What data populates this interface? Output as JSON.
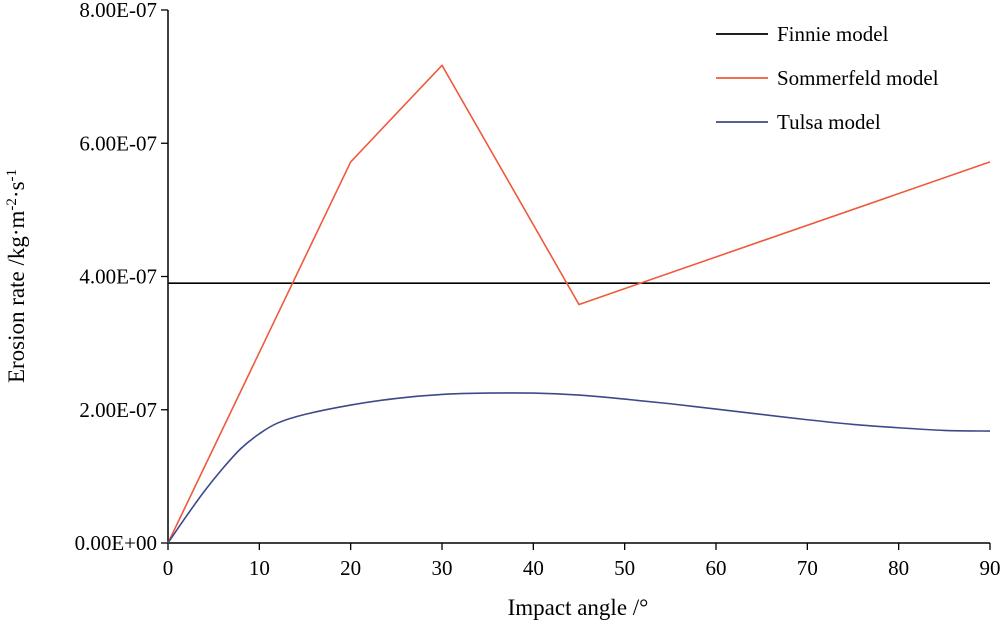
{
  "chart_data": {
    "type": "line",
    "xlabel": "Impact angle /°",
    "ylabel": "Erosion rate /kg·m",
    "ylabel_sup1": "-2",
    "ylabel_mid": "·s",
    "ylabel_sup2": "-1",
    "xlim": [
      0,
      90
    ],
    "ylim": [
      0,
      8e-07
    ],
    "xticks": [
      0,
      10,
      20,
      30,
      40,
      50,
      60,
      70,
      80,
      90
    ],
    "xtick_labels": [
      "0",
      "10",
      "20",
      "30",
      "40",
      "50",
      "60",
      "70",
      "80",
      "90"
    ],
    "yticks": [
      0,
      2e-07,
      4e-07,
      6e-07,
      8e-07
    ],
    "ytick_labels": [
      "0.00E+00",
      "2.00E-07",
      "4.00E-07",
      "6.00E-07",
      "8.00E-07"
    ],
    "grid": false,
    "legend_position": "top-right",
    "series": [
      {
        "name": "Finnie model",
        "color": "#000000",
        "x": [
          0,
          90
        ],
        "y": [
          3.9e-07,
          3.9e-07
        ]
      },
      {
        "name": "Sommerfeld model",
        "color": "#ee5a3e",
        "x": [
          0,
          20,
          30,
          45,
          90
        ],
        "y": [
          0,
          5.72e-07,
          7.17e-07,
          3.58e-07,
          5.72e-07
        ]
      },
      {
        "name": "Tulsa model",
        "color": "#3d4a8a",
        "x": [
          0,
          2,
          4,
          6,
          8,
          10,
          12,
          15,
          20,
          25,
          30,
          35,
          40,
          45,
          50,
          55,
          60,
          65,
          70,
          75,
          80,
          85,
          90
        ],
        "y": [
          0,
          4e-08,
          7.8e-08,
          1.12e-07,
          1.42e-07,
          1.64e-07,
          1.8e-07,
          1.93e-07,
          2.07e-07,
          2.17e-07,
          2.23e-07,
          2.25e-07,
          2.25e-07,
          2.22e-07,
          2.16e-07,
          2.09e-07,
          2.01e-07,
          1.93e-07,
          1.85e-07,
          1.78e-07,
          1.73e-07,
          1.69e-07,
          1.68e-07
        ]
      }
    ]
  }
}
